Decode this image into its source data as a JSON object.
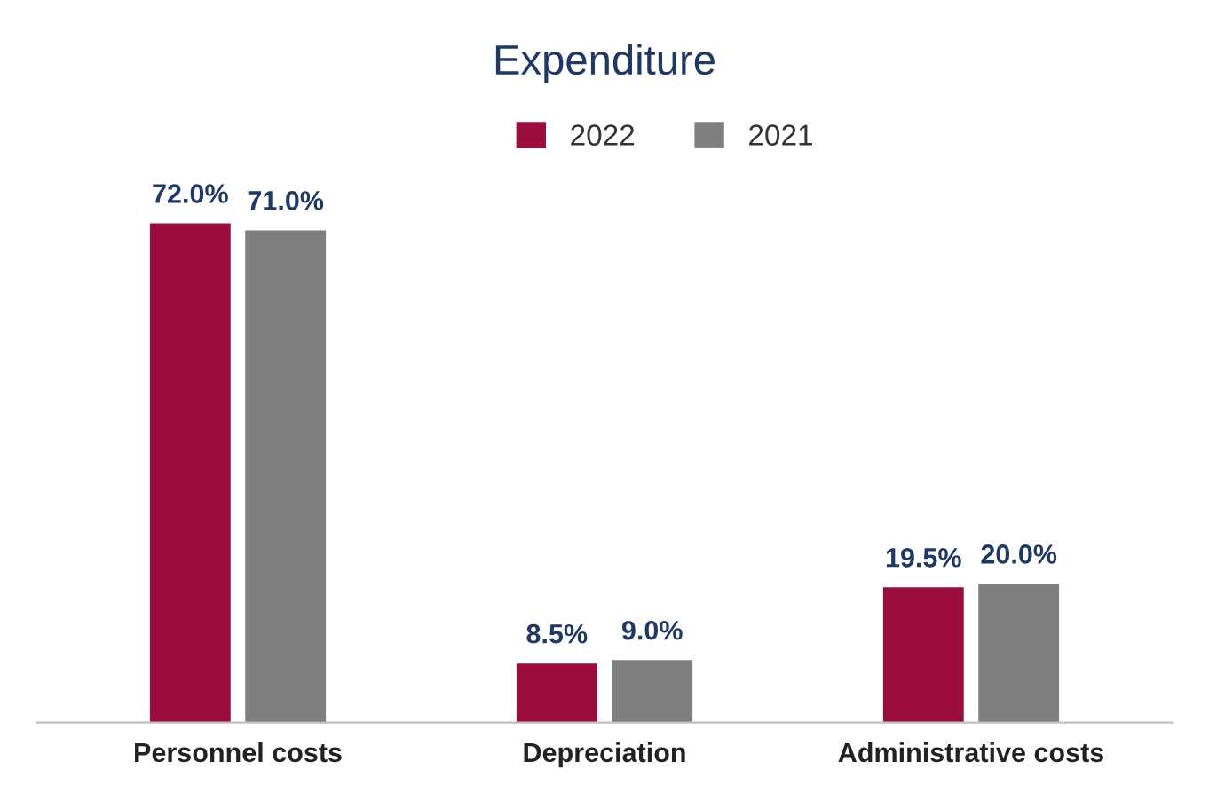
{
  "chart_data": {
    "type": "bar",
    "title": "Expenditure",
    "categories": [
      "Personnel costs",
      "Depreciation",
      "Administrative costs"
    ],
    "series": [
      {
        "name": "2022",
        "color": "#9b0d3a",
        "values": [
          72.0,
          8.5,
          19.5
        ],
        "value_labels": [
          "72.0%",
          "8.5%",
          "19.5%"
        ]
      },
      {
        "name": "2021",
        "color": "#7f7f7f",
        "values": [
          71.0,
          9.0,
          20.0
        ],
        "value_labels": [
          "71.0%",
          "9.0%",
          "20.0%"
        ]
      }
    ],
    "legend": "top"
  }
}
